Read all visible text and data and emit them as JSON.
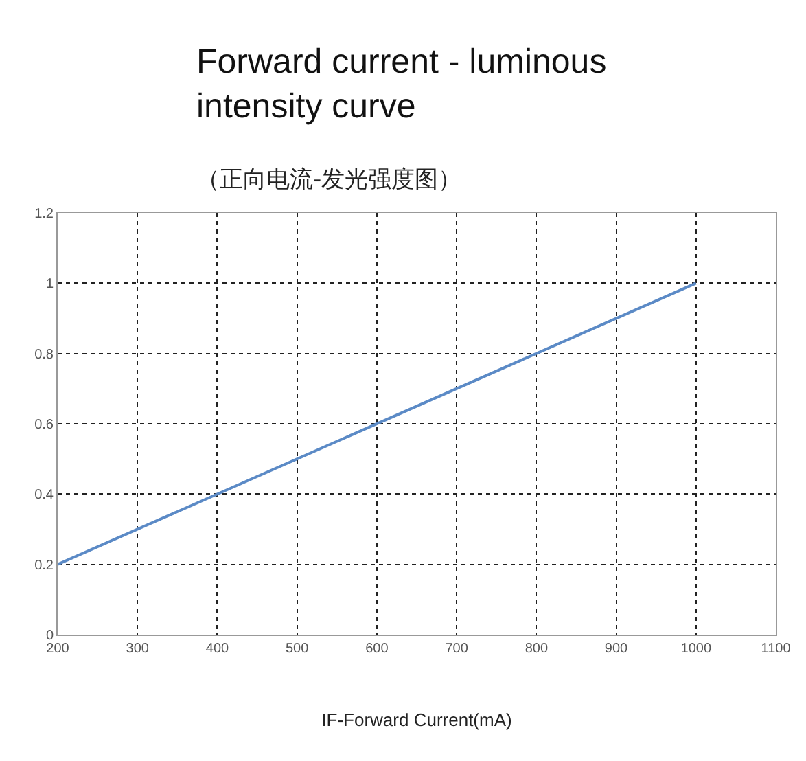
{
  "chart_data": {
    "type": "line",
    "title": "Forward current - luminous intensity curve",
    "subtitle": "（正向电流-发光强度图）",
    "xlabel": "IF-Forward Current(mA)",
    "x": [
      200,
      1000
    ],
    "series": [
      {
        "color": "#5b8ac6",
        "values": [
          0.2,
          1.0
        ]
      }
    ],
    "xlim": [
      200,
      1100
    ],
    "xticks": [
      200,
      300,
      400,
      500,
      600,
      700,
      800,
      900,
      1000,
      1100
    ],
    "ylim": [
      0,
      1.2
    ],
    "yticks": [
      0,
      0.2,
      0.4,
      0.6,
      0.8,
      1,
      1.2
    ],
    "grid": true,
    "marker": "none",
    "line_style": "solid"
  }
}
